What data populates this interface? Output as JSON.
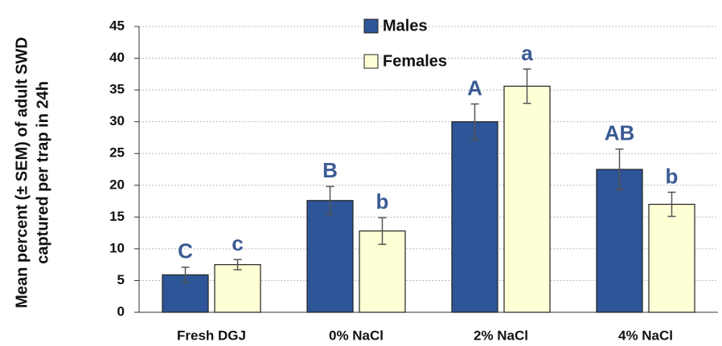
{
  "chart_data": {
    "type": "bar",
    "ylabel": [
      "Mean percent (± SEM) of adult SWD",
      "captured per trap in 24h"
    ],
    "categories": [
      "Fresh DGJ",
      "0% NaCl",
      "2% NaCl",
      "4% NaCl"
    ],
    "series": [
      {
        "name": "Males",
        "color": "#2e5597",
        "values": [
          5.9,
          17.6,
          30.0,
          22.5
        ],
        "errors": [
          1.2,
          2.2,
          2.8,
          3.2
        ],
        "letters": [
          "C",
          "B",
          "A",
          "AB"
        ]
      },
      {
        "name": "Females",
        "color": "#ffffd5",
        "values": [
          7.5,
          12.8,
          35.6,
          17.0
        ],
        "errors": [
          0.8,
          2.1,
          2.7,
          1.9
        ],
        "letters": [
          "c",
          "b",
          "a",
          "b"
        ]
      }
    ],
    "ylim": [
      0,
      45
    ],
    "yticks": [
      0,
      5,
      10,
      15,
      20,
      25,
      30,
      35,
      40,
      45
    ],
    "grid": true,
    "legend": "top"
  }
}
